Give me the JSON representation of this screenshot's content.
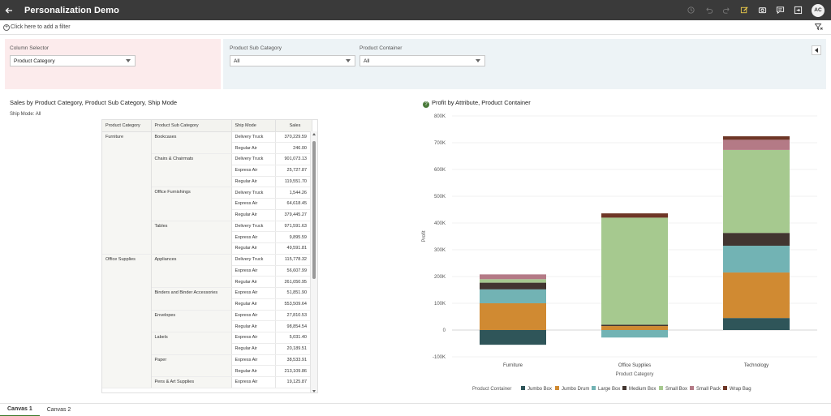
{
  "app": {
    "title": "Personalization Demo",
    "user_initials": "AC"
  },
  "toolbar": {
    "icons": [
      "undo-history-icon",
      "undo-icon",
      "redo-icon",
      "edit-icon",
      "camera-icon",
      "comment-icon",
      "export-icon"
    ]
  },
  "filter_bar": {
    "add_filter_label": "Click here to add a filter"
  },
  "parameters": {
    "column_selector": {
      "label": "Column Selector",
      "value": "Product Category"
    },
    "product_sub_category": {
      "label": "Product Sub Category",
      "value": "All"
    },
    "product_container": {
      "label": "Product Container",
      "value": "All"
    }
  },
  "table_viz": {
    "title": "Sales by Product Category, Product Sub Category, Ship Mode",
    "ship_mode_label": "Ship Mode: All",
    "headers": [
      "Product Category",
      "Product Sub Category",
      "Ship Mode",
      "Sales"
    ],
    "groups": [
      {
        "category": "Furniture",
        "subs": [
          {
            "name": "Bookcases",
            "rows": [
              [
                "Delivery Truck",
                "370,229.59"
              ],
              [
                "Regular Air",
                "246.00"
              ]
            ]
          },
          {
            "name": "Chairs & Chairmats",
            "rows": [
              [
                "Delivery Truck",
                "901,073.13"
              ],
              [
                "Express Air",
                "25,727.87"
              ],
              [
                "Regular Air",
                "119,551.70"
              ]
            ]
          },
          {
            "name": "Office Furnishings",
            "rows": [
              [
                "Delivery Truck",
                "1,544.26"
              ],
              [
                "Express Air",
                "64,618.45"
              ],
              [
                "Regular Air",
                "379,445.27"
              ]
            ]
          },
          {
            "name": "Tables",
            "rows": [
              [
                "Delivery Truck",
                "971,591.63"
              ],
              [
                "Express Air",
                "9,895.59"
              ],
              [
                "Regular Air",
                "49,591.81"
              ]
            ]
          }
        ]
      },
      {
        "category": "Office Supplies",
        "subs": [
          {
            "name": "Appliances",
            "rows": [
              [
                "Delivery Truck",
                "115,778.32"
              ],
              [
                "Express Air",
                "56,607.99"
              ],
              [
                "Regular Air",
                "261,050.95"
              ]
            ]
          },
          {
            "name": "Binders and Binder Accessories",
            "rows": [
              [
                "Express Air",
                "51,851.90"
              ],
              [
                "Regular Air",
                "553,509.64"
              ]
            ]
          },
          {
            "name": "Envelopes",
            "rows": [
              [
                "Express Air",
                "27,810.53"
              ],
              [
                "Regular Air",
                "98,854.54"
              ]
            ]
          },
          {
            "name": "Labels",
            "rows": [
              [
                "Express Air",
                "5,031.40"
              ],
              [
                "Regular Air",
                "20,189.51"
              ]
            ]
          },
          {
            "name": "Paper",
            "rows": [
              [
                "Express Air",
                "38,533.91"
              ],
              [
                "Regular Air",
                "213,109.86"
              ]
            ]
          },
          {
            "name": "Pens & Art Supplies",
            "rows": [
              [
                "Express Air",
                "19,125.87"
              ]
            ]
          }
        ]
      }
    ]
  },
  "chart_data": {
    "type": "bar",
    "stacked": true,
    "title": "Profit by Attribute, Product Container",
    "xlabel": "Product Category",
    "ylabel": "Profit",
    "ylim": [
      -100000,
      800000
    ],
    "yticks": [
      -100000,
      0,
      100000,
      200000,
      300000,
      400000,
      500000,
      600000,
      700000,
      800000
    ],
    "ytick_labels": [
      "-100K",
      "0",
      "100K",
      "200K",
      "300K",
      "400K",
      "500K",
      "600K",
      "700K",
      "800K"
    ],
    "categories": [
      "Furniture",
      "Office Supplies",
      "Technology"
    ],
    "legend_title": "Product Container",
    "legend_position": "bottom",
    "series": [
      {
        "name": "Jumbo Box",
        "color": "#2f5559",
        "values": [
          -55000,
          0,
          45000
        ]
      },
      {
        "name": "Jumbo Drum",
        "color": "#d08a32",
        "values": [
          100000,
          15000,
          170000
        ]
      },
      {
        "name": "Large Box",
        "color": "#72b3b4",
        "values": [
          52000,
          -28000,
          100000
        ]
      },
      {
        "name": "Medium Box",
        "color": "#423530",
        "values": [
          25000,
          5000,
          48000
        ]
      },
      {
        "name": "Small Box",
        "color": "#a6c98f",
        "values": [
          13000,
          400000,
          310000
        ]
      },
      {
        "name": "Small Pack",
        "color": "#b47a86",
        "values": [
          18000,
          0,
          38000
        ]
      },
      {
        "name": "Wrap Bag",
        "color": "#6e3626",
        "values": [
          0,
          16000,
          13000
        ]
      }
    ]
  },
  "tabs": [
    {
      "label": "Canvas 1",
      "active": true
    },
    {
      "label": "Canvas 2",
      "active": false
    }
  ]
}
